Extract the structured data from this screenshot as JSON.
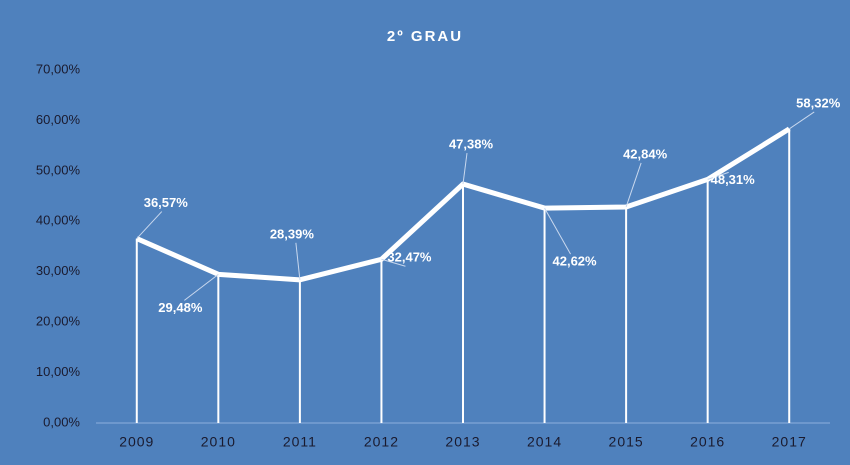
{
  "chart_data": {
    "type": "line",
    "title": "2º GRAU",
    "categories": [
      "2009",
      "2010",
      "2011",
      "2012",
      "2013",
      "2014",
      "2015",
      "2016",
      "2017"
    ],
    "values": [
      36.57,
      29.48,
      28.39,
      32.47,
      47.38,
      42.62,
      42.84,
      48.31,
      58.32
    ],
    "value_labels": [
      "36,57%",
      "29,48%",
      "28,39%",
      "32,47%",
      "47,38%",
      "42,62%",
      "42,84%",
      "48,31%",
      "58,32%"
    ],
    "color": "#ffffff",
    "ylim": [
      0,
      70
    ],
    "yticks": [
      {
        "value": 0,
        "label": "0,00%"
      },
      {
        "value": 10,
        "label": "10,00%"
      },
      {
        "value": 20,
        "label": "20,00%"
      },
      {
        "value": 30,
        "label": "30,00%"
      },
      {
        "value": 40,
        "label": "40,00%"
      },
      {
        "value": 50,
        "label": "50,00%"
      },
      {
        "value": 60,
        "label": "60,00%"
      },
      {
        "value": 70,
        "label": "70,00%"
      }
    ],
    "grid": false
  }
}
